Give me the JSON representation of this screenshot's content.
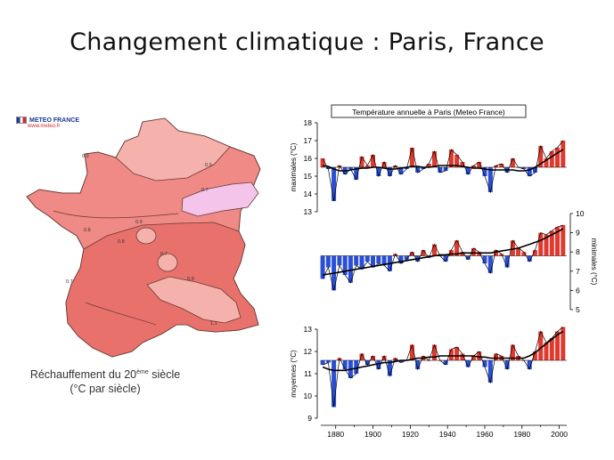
{
  "slide": {
    "title": "Changement climatique : Paris, France"
  },
  "logo": {
    "name": "METEO FRANCE",
    "url": "www.meteo.fr"
  },
  "map": {
    "caption_main": "Réchauffement du 20",
    "caption_sup": "ème",
    "caption_end": " siècle",
    "caption_unit": "(°C par siècle)",
    "colors": {
      "land": "#ef8a86",
      "darker": "#e8716c",
      "light": "#f5b1ab",
      "pink": "#f4c4ea",
      "outline": "#6a3a34"
    },
    "contour_labels": [
      "0.9",
      "0.9",
      "0.7",
      "0.9",
      "0.8",
      "0.8",
      "0.7",
      "0.7",
      "0.9",
      "1.1"
    ]
  },
  "chart_data": {
    "type": "area",
    "title": "Température annuelle à Paris (Meteo France)",
    "x_ticks": [
      1880,
      1900,
      1920,
      1940,
      1960,
      1980,
      2000
    ],
    "xlim": [
      1872,
      2004
    ],
    "colors": {
      "above": "#e0392e",
      "below": "#2a4fd6",
      "line": "#000000"
    },
    "panels": [
      {
        "name": "maximales",
        "ylabel": "maximales (°C)",
        "axis_side": "left",
        "ylim": [
          13,
          18
        ],
        "yticks": [
          13,
          14,
          15,
          16,
          17,
          18
        ],
        "baseline": 15.5,
        "x": [
          1873,
          1876,
          1879,
          1882,
          1885,
          1888,
          1891,
          1894,
          1897,
          1900,
          1903,
          1906,
          1909,
          1912,
          1915,
          1918,
          1921,
          1924,
          1927,
          1930,
          1933,
          1936,
          1939,
          1942,
          1945,
          1948,
          1951,
          1954,
          1957,
          1960,
          1963,
          1966,
          1969,
          1972,
          1975,
          1978,
          1981,
          1984,
          1987,
          1990,
          1993,
          1996,
          1999,
          2002
        ],
        "values": [
          16.0,
          15.4,
          13.6,
          15.6,
          15.1,
          15.4,
          14.8,
          16.1,
          15.6,
          16.2,
          15.0,
          15.8,
          15.0,
          15.6,
          15.1,
          15.4,
          16.6,
          15.2,
          15.4,
          15.7,
          16.4,
          15.2,
          15.3,
          16.5,
          16.2,
          15.8,
          15.1,
          15.6,
          15.8,
          15.0,
          14.1,
          15.6,
          15.7,
          15.2,
          16.0,
          15.5,
          15.4,
          15.0,
          15.2,
          16.7,
          16.0,
          16.4,
          16.6,
          17.0
        ],
        "trend": [
          15.6,
          15.55,
          15.4,
          15.3,
          15.3,
          15.35,
          15.4,
          15.45,
          15.45,
          15.5,
          15.5,
          15.45,
          15.4,
          15.4,
          15.45,
          15.5,
          15.55,
          15.55,
          15.5,
          15.5,
          15.55,
          15.6,
          15.6,
          15.6,
          15.6,
          15.55,
          15.5,
          15.45,
          15.45,
          15.4,
          15.35,
          15.35,
          15.35,
          15.35,
          15.35,
          15.3,
          15.3,
          15.35,
          15.5,
          15.7,
          15.9,
          16.1,
          16.3,
          16.5
        ]
      },
      {
        "name": "minimales",
        "ylabel": "minimales (°C)",
        "axis_side": "right",
        "ylim": [
          5,
          10
        ],
        "yticks": [
          5,
          6,
          7,
          8,
          9,
          10
        ],
        "baseline": 7.8,
        "x": [
          1873,
          1876,
          1879,
          1882,
          1885,
          1888,
          1891,
          1894,
          1897,
          1900,
          1903,
          1906,
          1909,
          1912,
          1915,
          1918,
          1921,
          1924,
          1927,
          1930,
          1933,
          1936,
          1939,
          1942,
          1945,
          1948,
          1951,
          1954,
          1957,
          1960,
          1963,
          1966,
          1969,
          1972,
          1975,
          1978,
          1981,
          1984,
          1987,
          1990,
          1993,
          1996,
          1999,
          2002
        ],
        "values": [
          6.6,
          7.2,
          6.0,
          7.3,
          6.8,
          6.4,
          7.3,
          7.1,
          7.5,
          7.2,
          7.4,
          7.3,
          7.0,
          7.9,
          7.4,
          7.6,
          8.0,
          7.5,
          8.1,
          7.7,
          8.4,
          7.8,
          7.5,
          8.1,
          8.6,
          8.0,
          7.6,
          8.2,
          8.0,
          7.4,
          6.9,
          8.1,
          7.9,
          7.2,
          8.6,
          8.2,
          8.0,
          7.5,
          8.1,
          9.0,
          8.9,
          9.1,
          9.3,
          9.4
        ],
        "trend": [
          6.8,
          6.85,
          6.9,
          6.95,
          7.0,
          7.05,
          7.1,
          7.15,
          7.2,
          7.25,
          7.3,
          7.35,
          7.4,
          7.45,
          7.5,
          7.55,
          7.6,
          7.65,
          7.7,
          7.75,
          7.8,
          7.85,
          7.85,
          7.9,
          7.9,
          7.95,
          7.95,
          7.95,
          7.95,
          7.95,
          7.95,
          8.0,
          8.05,
          8.1,
          8.15,
          8.2,
          8.3,
          8.4,
          8.5,
          8.6,
          8.75,
          8.9,
          9.05,
          9.2
        ]
      },
      {
        "name": "moyennes",
        "ylabel": "moyennes (°C)",
        "axis_side": "left",
        "ylim": [
          9,
          13
        ],
        "yticks": [
          9,
          10,
          11,
          12,
          13
        ],
        "baseline": 11.6,
        "x": [
          1873,
          1876,
          1879,
          1882,
          1885,
          1888,
          1891,
          1894,
          1897,
          1900,
          1903,
          1906,
          1909,
          1912,
          1915,
          1918,
          1921,
          1924,
          1927,
          1930,
          1933,
          1936,
          1939,
          1942,
          1945,
          1948,
          1951,
          1954,
          1957,
          1960,
          1963,
          1966,
          1969,
          1972,
          1975,
          1978,
          1981,
          1984,
          1987,
          1990,
          1993,
          1996,
          1999,
          2002
        ],
        "values": [
          11.4,
          11.5,
          9.5,
          11.7,
          11.2,
          10.8,
          11.0,
          11.9,
          11.4,
          11.8,
          11.2,
          11.8,
          10.9,
          11.7,
          11.5,
          11.6,
          12.3,
          11.2,
          11.8,
          11.6,
          12.3,
          11.6,
          11.4,
          12.1,
          12.2,
          11.9,
          11.3,
          11.8,
          12.0,
          11.3,
          10.6,
          11.9,
          11.8,
          11.2,
          12.3,
          11.8,
          11.6,
          11.2,
          12.0,
          12.9,
          12.4,
          12.6,
          12.9,
          13.1
        ],
        "trend": [
          11.3,
          11.2,
          11.15,
          11.15,
          11.15,
          11.2,
          11.25,
          11.3,
          11.35,
          11.4,
          11.45,
          11.5,
          11.5,
          11.55,
          11.6,
          11.6,
          11.65,
          11.7,
          11.7,
          11.75,
          11.75,
          11.8,
          11.8,
          11.8,
          11.8,
          11.8,
          11.8,
          11.8,
          11.75,
          11.75,
          11.7,
          11.7,
          11.7,
          11.7,
          11.7,
          11.7,
          11.7,
          11.8,
          11.95,
          12.15,
          12.35,
          12.55,
          12.75,
          12.9
        ]
      }
    ]
  }
}
